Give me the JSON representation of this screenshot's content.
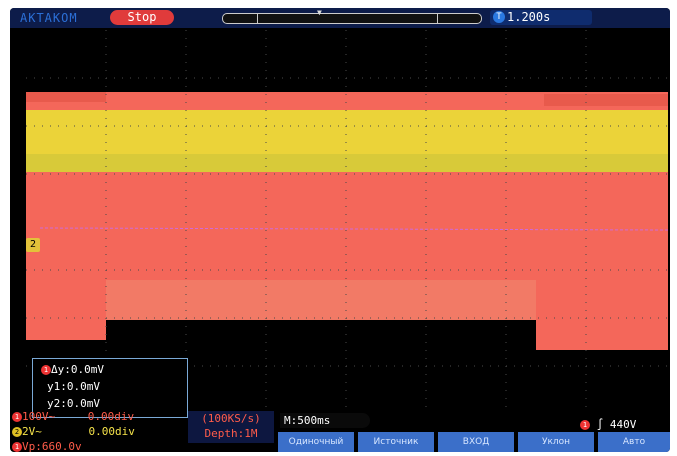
{
  "topbar": {
    "brand": "AKTAKOM",
    "run_state": "Stop",
    "delay_time": "1.200s",
    "delay_icon": "T"
  },
  "cursor": {
    "delta_y": "Δy:0.0mV",
    "y1": "y1:0.0mV",
    "y2": "y2:0.0mV",
    "channel": "1"
  },
  "channels": {
    "ch1_scale": "100V~",
    "ch1_offset": "0.00div",
    "ch1_num": "1",
    "ch2_scale": "2V~",
    "ch2_offset": "0.00div",
    "ch2_num": "2",
    "vp_label": "Vp:660.0v",
    "vp_num": "1",
    "ch2_marker": "2"
  },
  "acquisition": {
    "sample_rate": "(100KS/s)",
    "depth": "Depth:1M"
  },
  "timebase": "M:500ms",
  "trigger": {
    "level": "440V",
    "channel": "1"
  },
  "softkeys": [
    "Одиночный",
    "Источник",
    "ВХОД",
    "Уклон",
    "Авто"
  ],
  "colors": {
    "ch1": "#f4675a",
    "ch2": "#f2e22e",
    "stop": "#e03b3b"
  }
}
